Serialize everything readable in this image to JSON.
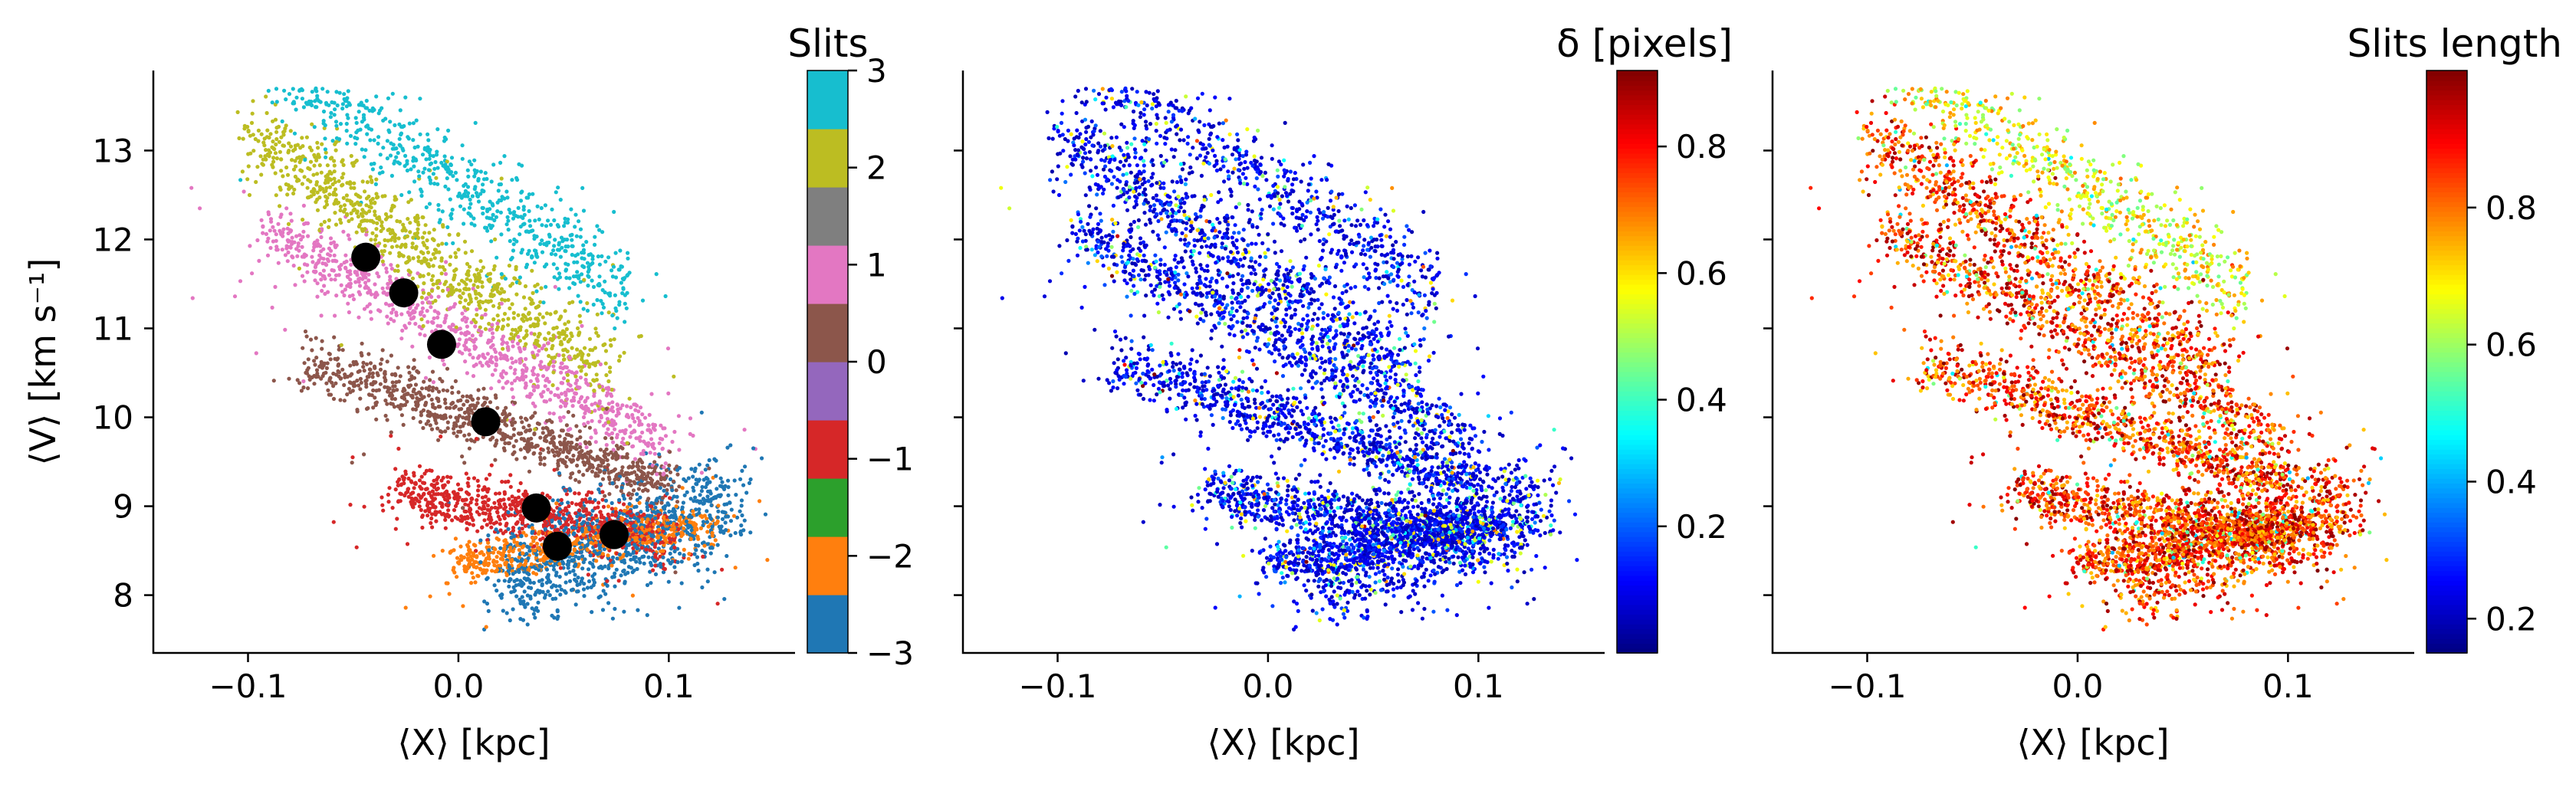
{
  "chart_data": [
    {
      "type": "scatter",
      "xlabel": "⟨X⟩ [kpc]",
      "ylabel": "⟨V⟩ [km s⁻¹]",
      "xlim": [
        -0.145,
        0.16
      ],
      "ylim": [
        7.35,
        13.9
      ],
      "x_ticks": [
        -0.1,
        0.0,
        0.1
      ],
      "x_tick_labels": [
        "−0.1",
        "0.0",
        "0.1"
      ],
      "y_ticks": [
        8,
        9,
        10,
        11,
        12,
        13
      ],
      "y_tick_labels": [
        "8",
        "9",
        "10",
        "11",
        "12",
        "13"
      ],
      "color_by": "slit",
      "colorbar": {
        "title": "Slits",
        "range": [
          -3,
          3
        ],
        "ticks": [
          -3,
          -2,
          -1,
          0,
          1,
          2,
          3
        ],
        "tick_labels": [
          "−3",
          "−2",
          "−1",
          "0",
          "1",
          "2",
          "3"
        ],
        "colors": [
          "#1f77b4",
          "#ff7f0e",
          "#2ca02c",
          "#d62728",
          "#9467bd",
          "#8c564b",
          "#e377c2",
          "#7f7f7f",
          "#bcbd22",
          "#17becf"
        ]
      },
      "slits": [
        {
          "slit": -3,
          "color": "#1f77b4",
          "center": [
            0.08,
            8.5
          ]
        },
        {
          "slit": -2,
          "color": "#ff7f0e",
          "center": [
            0.05,
            8.5
          ]
        },
        {
          "slit": -1,
          "color": "#d62728",
          "center": [
            0.03,
            9.0
          ]
        },
        {
          "slit": 0,
          "color": "#8c564b",
          "center": [
            0.0,
            10.0
          ]
        },
        {
          "slit": 1,
          "color": "#e377c2",
          "center": [
            -0.01,
            10.9
          ]
        },
        {
          "slit": 2,
          "color": "#bcbd22",
          "center": [
            -0.04,
            11.8
          ]
        },
        {
          "slit": 3,
          "color": "#17becf",
          "center": [
            -0.07,
            12.5
          ]
        }
      ],
      "markers": {
        "color": "#000000",
        "x": [
          -0.044,
          -0.026,
          -0.008,
          0.013,
          0.037,
          0.047,
          0.074
        ],
        "y": [
          11.8,
          11.4,
          10.82,
          9.95,
          8.98,
          8.55,
          8.68
        ]
      }
    },
    {
      "type": "scatter",
      "xlabel": "⟨X⟩ [kpc]",
      "xlim": [
        -0.145,
        0.16
      ],
      "ylim": [
        7.35,
        13.9
      ],
      "x_ticks": [
        -0.1,
        0.0,
        0.1
      ],
      "x_tick_labels": [
        "−0.1",
        "0.0",
        "0.1"
      ],
      "color_by": "delta",
      "colormap": "jet",
      "colorbar": {
        "title": "δ [pixels]",
        "range": [
          0.0,
          0.92
        ],
        "ticks": [
          0.2,
          0.4,
          0.6,
          0.8
        ],
        "tick_labels": [
          "0.2",
          "0.4",
          "0.6",
          "0.8"
        ]
      }
    },
    {
      "type": "scatter",
      "xlabel": "⟨X⟩ [kpc]",
      "xlim": [
        -0.145,
        0.16
      ],
      "ylim": [
        7.35,
        13.9
      ],
      "x_ticks": [
        -0.1,
        0.0,
        0.1
      ],
      "x_tick_labels": [
        "−0.1",
        "0.0",
        "0.1"
      ],
      "color_by": "slit_length",
      "colormap": "jet",
      "colorbar": {
        "title": "Slits length",
        "range": [
          0.15,
          1.0
        ],
        "ticks": [
          0.2,
          0.4,
          0.6,
          0.8
        ],
        "tick_labels": [
          "0.2",
          "0.4",
          "0.6",
          "0.8"
        ]
      }
    }
  ]
}
